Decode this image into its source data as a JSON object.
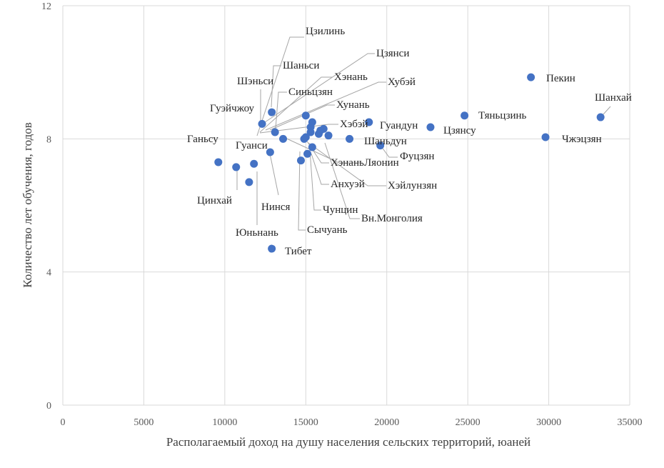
{
  "chart_data": {
    "type": "scatter",
    "xlabel": "Располагаемый доход на душу населения сельских территорий, юаней",
    "ylabel": "Количество лет обучения, годов",
    "xlim": [
      0,
      35000
    ],
    "ylim": [
      0,
      12
    ],
    "xticks": [
      0,
      5000,
      10000,
      15000,
      20000,
      25000,
      30000,
      35000
    ],
    "yticks": [
      0,
      4,
      8,
      12
    ],
    "grid": true,
    "color": "#4472c4",
    "points": [
      {
        "name": "Цзилинь",
        "x": 15000,
        "y": 8.7
      },
      {
        "name": "Цзянси",
        "x": 15400,
        "y": 8.5
      },
      {
        "name": "Шаньси",
        "x": 12900,
        "y": 8.8
      },
      {
        "name": "Хэнань",
        "x": 15300,
        "y": 8.35
      },
      {
        "name": "Шэньси",
        "x": 12300,
        "y": 8.45
      },
      {
        "name": "Синьцзян",
        "x": 13100,
        "y": 8.2
      },
      {
        "name": "Хубэй",
        "x": 15900,
        "y": 8.25
      },
      {
        "name": "Хунань",
        "x": 16100,
        "y": 8.3
      },
      {
        "name": "Гуэйчжоу",
        "x": 13600,
        "y": 8.0
      },
      {
        "name": "Хэбэй",
        "x": 15300,
        "y": 8.2
      },
      {
        "name": "Гуандун",
        "x": 18900,
        "y": 8.5
      },
      {
        "name": "Ганьсу",
        "x": 9600,
        "y": 7.3
      },
      {
        "name": "Гуанси",
        "x": 12800,
        "y": 7.6
      },
      {
        "name": "Хэнань",
        "x": 15000,
        "y": 8.05
      },
      {
        "name": "Шаньдун",
        "x": 17700,
        "y": 8.0
      },
      {
        "name": "Ляонин",
        "x": 16400,
        "y": 8.1
      },
      {
        "name": "Фуцзян",
        "x": 19600,
        "y": 7.8
      },
      {
        "name": "Анхуэй",
        "x": 15100,
        "y": 7.55
      },
      {
        "name": "Хэйлунзян",
        "x": 15400,
        "y": 7.75
      },
      {
        "name": "Цинхай",
        "x": 10700,
        "y": 7.15
      },
      {
        "name": "Нинся",
        "x": 11800,
        "y": 7.25
      },
      {
        "name": "Чунцин",
        "x": 14700,
        "y": 7.35
      },
      {
        "name": "Вн.Монголия",
        "x": 15800,
        "y": 8.15
      },
      {
        "name": "Сычуань",
        "x": 14900,
        "y": 8.0
      },
      {
        "name": "Юньнань",
        "x": 11500,
        "y": 6.7
      },
      {
        "name": "Тибет",
        "x": 12900,
        "y": 4.7
      },
      {
        "name": "Пекин",
        "x": 28900,
        "y": 9.85
      },
      {
        "name": "Тяньцзинь",
        "x": 24800,
        "y": 8.7
      },
      {
        "name": "Цзянсу",
        "x": 22700,
        "y": 8.35
      },
      {
        "name": "Шанхай",
        "x": 33200,
        "y": 8.65
      },
      {
        "name": "Чжэцзян",
        "x": 29800,
        "y": 8.05
      }
    ]
  }
}
